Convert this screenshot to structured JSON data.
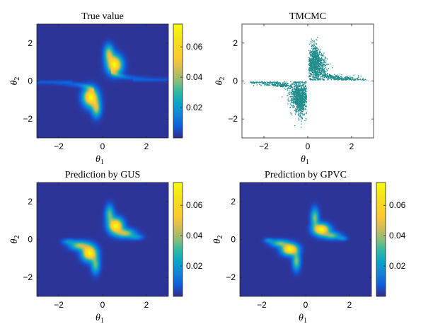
{
  "chart_data": [
    {
      "type": "heatmap",
      "title": "True value",
      "xlabel": "θ",
      "xlabel_subscript": "1",
      "ylabel": "θ",
      "ylabel_subscript": "2",
      "xlim": [
        -3,
        3
      ],
      "ylim": [
        -3,
        3
      ],
      "xticks": [
        -2,
        0,
        2
      ],
      "yticks": [
        -2,
        0,
        2
      ],
      "colorbar": {
        "min": 0,
        "max": 0.075,
        "ticks": [
          0.02,
          0.04,
          0.06
        ],
        "tick_labels": [
          "0.02",
          "0.04",
          "0.06"
        ],
        "colormap": "parula"
      },
      "modes": [
        {
          "center": [
            0.55,
            0.85
          ],
          "peak": 0.075,
          "shape": "tail toward +θ1 along θ2≈0.1 and upward along θ1≈0.2"
        },
        {
          "center": [
            -0.55,
            -0.85
          ],
          "peak": 0.075,
          "shape": "tail toward -θ1 along θ2≈-0.1 and downward along θ1≈-0.2"
        }
      ],
      "colorbar_shown": true
    },
    {
      "type": "scatter",
      "title": "TMCMC",
      "xlabel": "θ",
      "xlabel_subscript": "1",
      "ylabel": "θ",
      "ylabel_subscript": "2",
      "xlim": [
        -3,
        3
      ],
      "ylim": [
        -3,
        3
      ],
      "xticks": [
        -2,
        0,
        2
      ],
      "yticks": [
        -2,
        0,
        2
      ],
      "marker_color": "#1f8c8c",
      "marker_size": 1.3,
      "clusters": [
        {
          "center": [
            0.45,
            0.7
          ],
          "extent_theta1": [
            0.1,
            2.6
          ],
          "extent_theta2": [
            0.05,
            2.3
          ]
        },
        {
          "center": [
            -0.45,
            -0.7
          ],
          "extent_theta1": [
            -2.9,
            -0.1
          ],
          "extent_theta2": [
            -2.1,
            -0.05
          ]
        }
      ],
      "colorbar_shown": false
    },
    {
      "type": "heatmap",
      "title": "Prediction by GUS",
      "xlabel": "θ",
      "xlabel_subscript": "1",
      "ylabel": "θ",
      "ylabel_subscript": "2",
      "xlim": [
        -3,
        3
      ],
      "ylim": [
        -3,
        3
      ],
      "xticks": [
        -2,
        0,
        2
      ],
      "yticks": [
        -2,
        0,
        2
      ],
      "colorbar": {
        "min": 0,
        "max": 0.075,
        "ticks": [
          0.02,
          0.04,
          0.06
        ],
        "tick_labels": [
          "0.02",
          "0.04",
          "0.06"
        ],
        "colormap": "parula"
      },
      "modes": [
        {
          "center": [
            0.6,
            0.7
          ],
          "peak": 0.075,
          "shape": "tail toward θ1≈1.6 along θ2≈0.1 and upward along θ1≈0.3"
        },
        {
          "center": [
            -0.6,
            -0.7
          ],
          "peak": 0.075,
          "shape": "tail toward θ1≈-1.6 along θ2≈-0.1 and downward along θ1≈-0.3"
        }
      ],
      "colorbar_shown": true
    },
    {
      "type": "heatmap",
      "title": "Prediction by GPVC",
      "xlabel": "θ",
      "xlabel_subscript": "1",
      "ylabel": "θ",
      "ylabel_subscript": "2",
      "xlim": [
        -3,
        3
      ],
      "ylim": [
        -3,
        3
      ],
      "xticks": [
        -2,
        0,
        2
      ],
      "yticks": [
        -2,
        0,
        2
      ],
      "colorbar": {
        "min": 0,
        "max": 0.075,
        "ticks": [
          0.02,
          0.04,
          0.06
        ],
        "tick_labels": [
          "0.02",
          "0.04",
          "0.06"
        ],
        "colormap": "parula"
      },
      "modes": [
        {
          "center": [
            0.7,
            0.5
          ],
          "peak": 0.075,
          "shape": "tail toward θ1≈1.7 along θ2≈0.0 and upward along θ1≈0.4"
        },
        {
          "center": [
            -0.7,
            -0.5
          ],
          "peak": 0.075,
          "shape": "tail toward θ1≈-1.7 along θ2≈0.0 and downward along θ1≈-0.4"
        }
      ],
      "colorbar_shown": true
    }
  ]
}
